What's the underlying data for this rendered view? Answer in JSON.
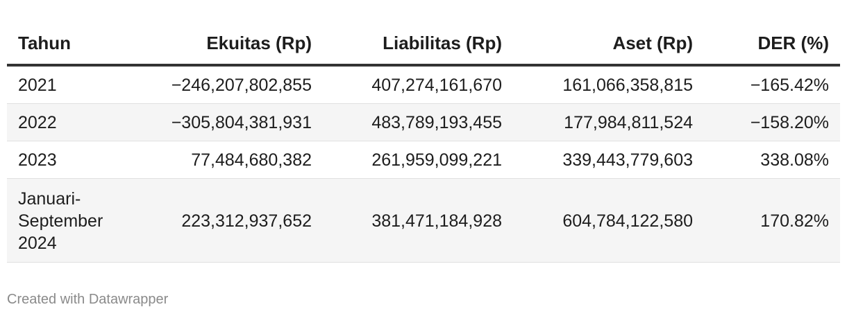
{
  "chart_data": {
    "type": "table",
    "columns": [
      "Tahun",
      "Ekuitas (Rp)",
      "Liabilitas (Rp)",
      "Aset (Rp)",
      "DER (%)"
    ],
    "rows": [
      [
        "2021",
        "−246,207,802,855",
        "407,274,161,670",
        "161,066,358,815",
        "−165.42%"
      ],
      [
        "2022",
        "−305,804,381,931",
        "483,789,193,455",
        "177,984,811,524",
        "−158.20%"
      ],
      [
        "2023",
        "77,484,680,382",
        "261,959,099,221",
        "339,443,779,603",
        "338.08%"
      ],
      [
        "Januari-September 2024",
        "223,312,937,652",
        "381,471,184,928",
        "604,784,122,580",
        "170.82%"
      ]
    ],
    "row_label_lines": {
      "3": [
        "Januari-",
        "September",
        "2024"
      ]
    }
  },
  "footer": "Created with Datawrapper"
}
